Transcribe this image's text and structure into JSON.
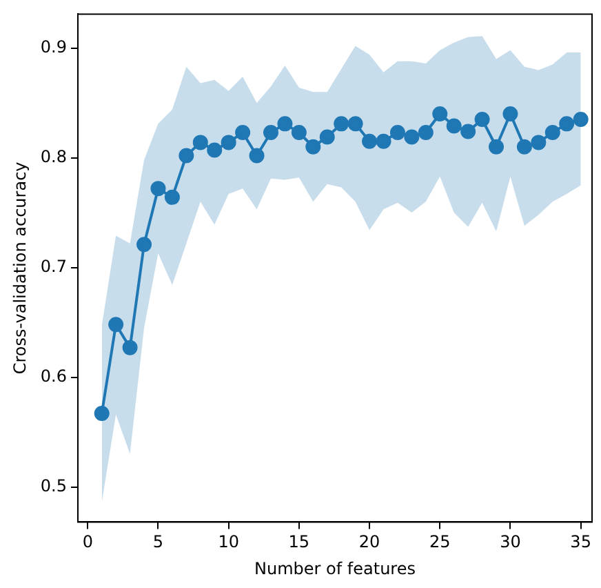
{
  "chart_data": {
    "type": "line",
    "xlabel": "Number of features",
    "ylabel": "Cross-validation accuracy",
    "x": [
      1,
      2,
      3,
      4,
      5,
      6,
      7,
      8,
      9,
      10,
      11,
      12,
      13,
      14,
      15,
      16,
      17,
      18,
      19,
      20,
      21,
      22,
      23,
      24,
      25,
      26,
      27,
      28,
      29,
      30,
      31,
      32,
      33,
      34,
      35
    ],
    "series": [
      {
        "color": "#1f77b4",
        "values": [
          0.567,
          0.648,
          0.627,
          0.721,
          0.772,
          0.764,
          0.802,
          0.814,
          0.807,
          0.814,
          0.823,
          0.802,
          0.823,
          0.831,
          0.823,
          0.81,
          0.819,
          0.831,
          0.831,
          0.815,
          0.815,
          0.823,
          0.819,
          0.823,
          0.84,
          0.829,
          0.824,
          0.835,
          0.81,
          0.84,
          0.81,
          0.814,
          0.823,
          0.831,
          0.835
        ],
        "upper": [
          0.647,
          0.729,
          0.722,
          0.798,
          0.831,
          0.844,
          0.883,
          0.868,
          0.871,
          0.861,
          0.874,
          0.85,
          0.865,
          0.884,
          0.864,
          0.86,
          0.86,
          0.881,
          0.902,
          0.894,
          0.878,
          0.888,
          0.888,
          0.886,
          0.898,
          0.905,
          0.91,
          0.911,
          0.89,
          0.898,
          0.883,
          0.88,
          0.885,
          0.896,
          0.896
        ],
        "lower": [
          0.486,
          0.566,
          0.53,
          0.645,
          0.713,
          0.684,
          0.722,
          0.76,
          0.739,
          0.767,
          0.772,
          0.753,
          0.781,
          0.78,
          0.782,
          0.76,
          0.776,
          0.773,
          0.76,
          0.734,
          0.753,
          0.759,
          0.75,
          0.76,
          0.783,
          0.75,
          0.737,
          0.759,
          0.733,
          0.783,
          0.738,
          0.748,
          0.76,
          0.767,
          0.775
        ]
      }
    ],
    "xlim": [
      -0.7,
      35.8
    ],
    "ylim": [
      0.468,
      0.931
    ],
    "xticks": [
      0,
      5,
      10,
      15,
      20,
      25,
      30,
      35
    ],
    "yticks": [
      0.5,
      0.6,
      0.7,
      0.8,
      0.9
    ],
    "marker": "circle",
    "line_style": "solid",
    "grid": false,
    "legend": false
  }
}
